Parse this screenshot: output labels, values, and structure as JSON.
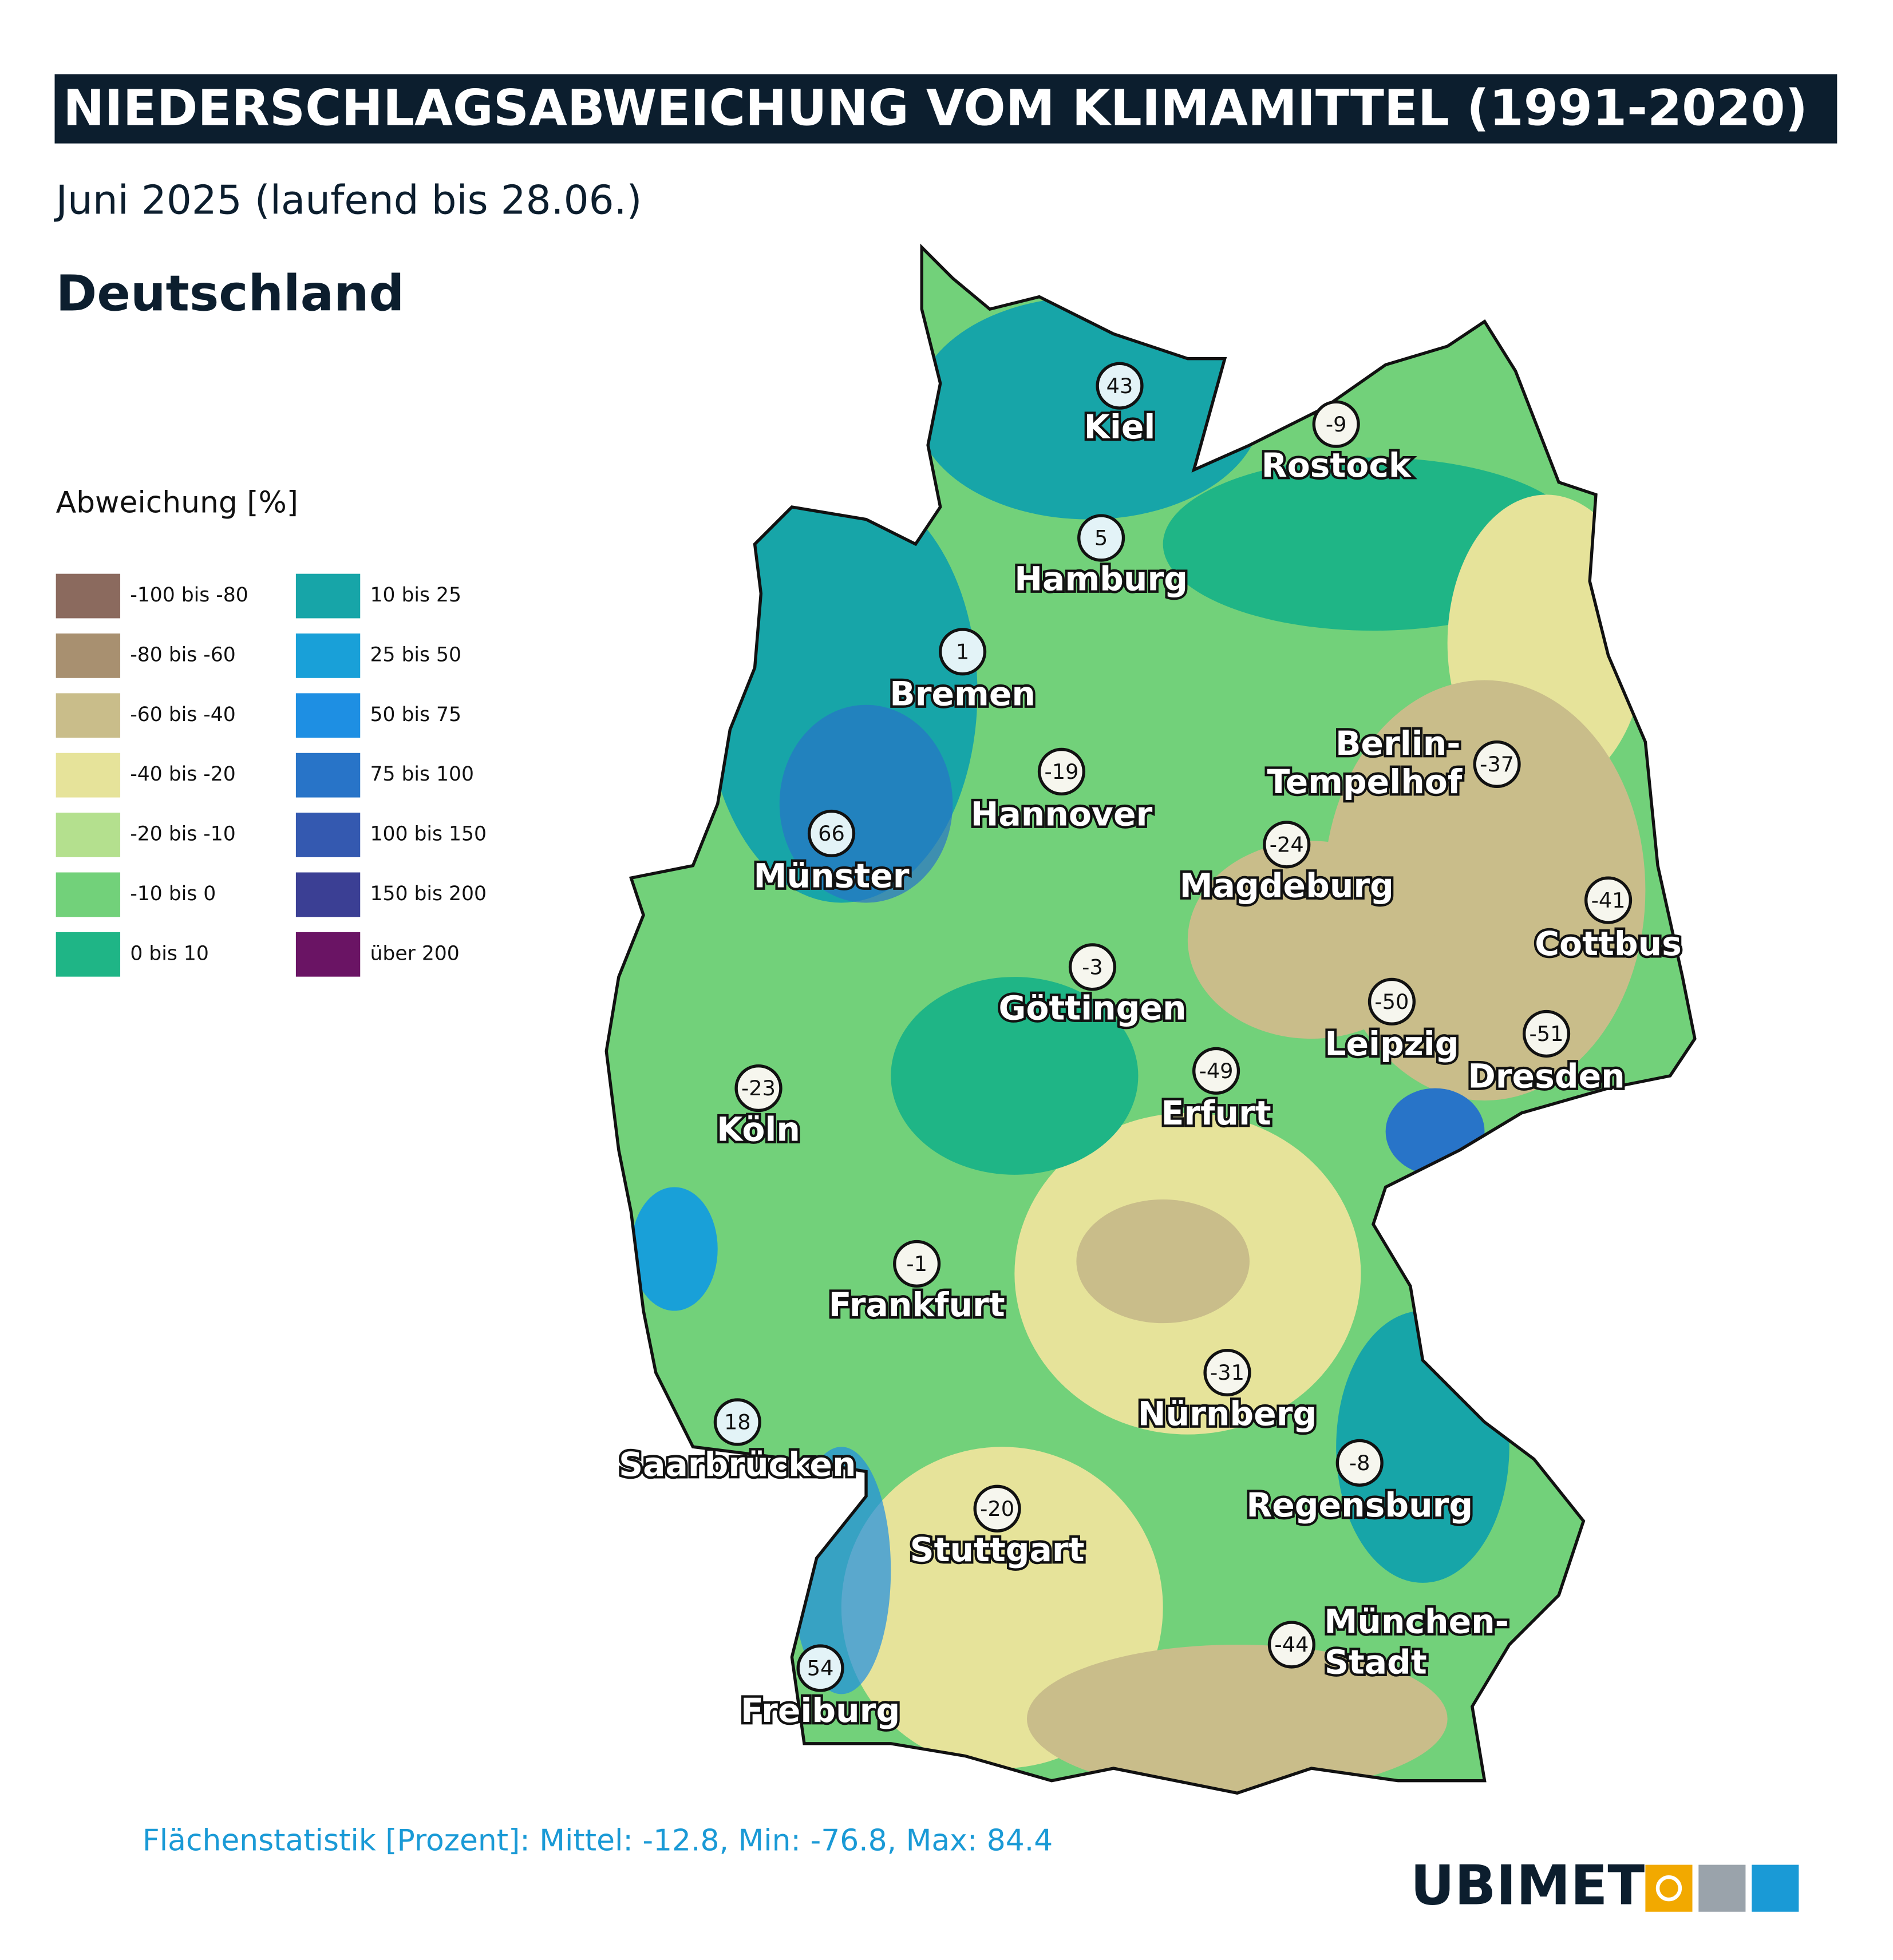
{
  "header": {
    "title": "NIEDERSCHLAGSABWEICHUNG VOM KLIMAMITTEL (1991-2020)",
    "subtitle": "Juni 2025 (laufend bis 28.06.)",
    "region": "Deutschland"
  },
  "legend": {
    "title": "Abweichung [%]",
    "items": [
      {
        "label": "-100 bis -80",
        "color": "#8b6a5e"
      },
      {
        "label": "-80 bis -60",
        "color": "#a89070"
      },
      {
        "label": "-60 bis -40",
        "color": "#c9bd8a"
      },
      {
        "label": "-40 bis -20",
        "color": "#e6e39a"
      },
      {
        "label": "-20 bis -10",
        "color": "#b4e08e"
      },
      {
        "label": "-10 bis 0",
        "color": "#72d17a"
      },
      {
        "label": "0 bis 10",
        "color": "#1fb586"
      },
      {
        "label": "10 bis 25",
        "color": "#17a5a8"
      },
      {
        "label": "25 bis 50",
        "color": "#19a0d8"
      },
      {
        "label": "50 bis 75",
        "color": "#1e8fe3"
      },
      {
        "label": "75 bis 100",
        "color": "#2874c8"
      },
      {
        "label": "100 bis 150",
        "color": "#3459b0"
      },
      {
        "label": "150 bis 200",
        "color": "#3b3f94"
      },
      {
        "label": "über 200",
        "color": "#6a1464"
      }
    ]
  },
  "cities": [
    {
      "name": [
        "Kiel"
      ],
      "value": 43
    },
    {
      "name": [
        "Rostock"
      ],
      "value": -9
    },
    {
      "name": [
        "Hamburg"
      ],
      "value": 5
    },
    {
      "name": [
        "Bremen"
      ],
      "value": 1
    },
    {
      "name": [
        "Hannover"
      ],
      "value": -19
    },
    {
      "name": [
        "Berlin-",
        "Tempelhof"
      ],
      "value": -37
    },
    {
      "name": [
        "Münster"
      ],
      "value": 66
    },
    {
      "name": [
        "Magdeburg"
      ],
      "value": -24
    },
    {
      "name": [
        "Cottbus"
      ],
      "value": -41
    },
    {
      "name": [
        "Göttingen"
      ],
      "value": -3
    },
    {
      "name": [
        "Leipzig"
      ],
      "value": -50
    },
    {
      "name": [
        "Dresden"
      ],
      "value": -51
    },
    {
      "name": [
        "Erfurt"
      ],
      "value": -49
    },
    {
      "name": [
        "Köln"
      ],
      "value": -23
    },
    {
      "name": [
        "Frankfurt"
      ],
      "value": -1
    },
    {
      "name": [
        "Nürnberg"
      ],
      "value": -31
    },
    {
      "name": [
        "Saarbrücken"
      ],
      "value": 18
    },
    {
      "name": [
        "Regensburg"
      ],
      "value": -8
    },
    {
      "name": [
        "Stuttgart"
      ],
      "value": -20
    },
    {
      "name": [
        "München-",
        "Stadt"
      ],
      "value": -44
    },
    {
      "name": [
        "Freiburg"
      ],
      "value": 54
    }
  ],
  "footer": {
    "statistics": "Flächenstatistik [Prozent]: Mittel: -12.8, Min: -76.8, Max: 84.4",
    "logo": "UBIMET"
  }
}
